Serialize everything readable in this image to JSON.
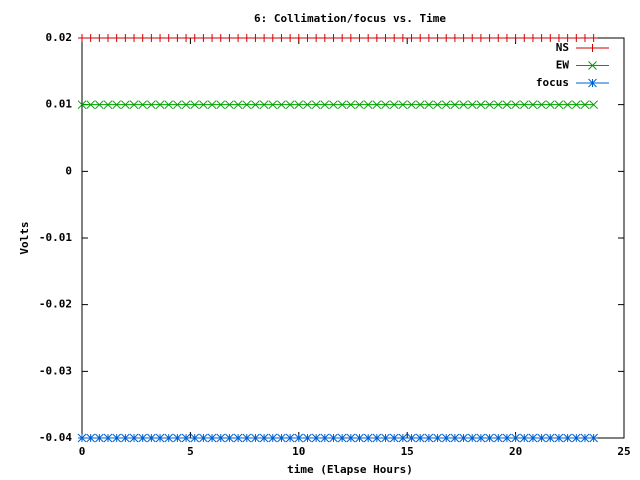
{
  "chart_data": {
    "type": "line",
    "title": "6: Collimation/focus vs. Time",
    "xlabel": "time (Elapse Hours)",
    "ylabel": "Volts",
    "x": [
      0,
      0.4,
      0.8,
      1.2,
      1.6,
      2,
      2.4,
      2.8,
      3.2,
      3.6,
      4,
      4.4,
      4.8,
      5.2,
      5.6,
      6,
      6.4,
      6.8,
      7.2,
      7.6,
      8,
      8.4,
      8.8,
      9.2,
      9.6,
      10,
      10.4,
      10.8,
      11.2,
      11.6,
      12,
      12.4,
      12.8,
      13.2,
      13.6,
      14,
      14.4,
      14.8,
      15.2,
      15.6,
      16,
      16.4,
      16.8,
      17.2,
      17.6,
      18,
      18.4,
      18.8,
      19.2,
      19.6,
      20,
      20.4,
      20.8,
      21.2,
      21.6,
      22,
      22.4,
      22.8,
      23.2,
      23.6
    ],
    "series": [
      {
        "name": "NS",
        "color": "#d00000",
        "marker": "plus",
        "values": [
          0.02,
          0.02,
          0.02,
          0.02,
          0.02,
          0.02,
          0.02,
          0.02,
          0.02,
          0.02,
          0.02,
          0.02,
          0.02,
          0.02,
          0.02,
          0.02,
          0.02,
          0.02,
          0.02,
          0.02,
          0.02,
          0.02,
          0.02,
          0.02,
          0.02,
          0.02,
          0.02,
          0.02,
          0.02,
          0.02,
          0.02,
          0.02,
          0.02,
          0.02,
          0.02,
          0.02,
          0.02,
          0.02,
          0.02,
          0.02,
          0.02,
          0.02,
          0.02,
          0.02,
          0.02,
          0.02,
          0.02,
          0.02,
          0.02,
          0.02,
          0.02,
          0.02,
          0.02,
          0.02,
          0.02,
          0.02,
          0.02,
          0.02,
          0.02,
          0.02
        ]
      },
      {
        "name": "EW",
        "color": "#00a000",
        "marker": "cross",
        "values": [
          0.01,
          0.01,
          0.01,
          0.01,
          0.01,
          0.01,
          0.01,
          0.01,
          0.01,
          0.01,
          0.01,
          0.01,
          0.01,
          0.01,
          0.01,
          0.01,
          0.01,
          0.01,
          0.01,
          0.01,
          0.01,
          0.01,
          0.01,
          0.01,
          0.01,
          0.01,
          0.01,
          0.01,
          0.01,
          0.01,
          0.01,
          0.01,
          0.01,
          0.01,
          0.01,
          0.01,
          0.01,
          0.01,
          0.01,
          0.01,
          0.01,
          0.01,
          0.01,
          0.01,
          0.01,
          0.01,
          0.01,
          0.01,
          0.01,
          0.01,
          0.01,
          0.01,
          0.01,
          0.01,
          0.01,
          0.01,
          0.01,
          0.01,
          0.01,
          0.01
        ]
      },
      {
        "name": "focus",
        "color": "#0060d0",
        "marker": "star",
        "values": [
          -0.04,
          -0.04,
          -0.04,
          -0.04,
          -0.04,
          -0.04,
          -0.04,
          -0.04,
          -0.04,
          -0.04,
          -0.04,
          -0.04,
          -0.04,
          -0.04,
          -0.04,
          -0.04,
          -0.04,
          -0.04,
          -0.04,
          -0.04,
          -0.04,
          -0.04,
          -0.04,
          -0.04,
          -0.04,
          -0.04,
          -0.04,
          -0.04,
          -0.04,
          -0.04,
          -0.04,
          -0.04,
          -0.04,
          -0.04,
          -0.04,
          -0.04,
          -0.04,
          -0.04,
          -0.04,
          -0.04,
          -0.04,
          -0.04,
          -0.04,
          -0.04,
          -0.04,
          -0.04,
          -0.04,
          -0.04,
          -0.04,
          -0.04,
          -0.04,
          -0.04,
          -0.04,
          -0.04,
          -0.04,
          -0.04,
          -0.04,
          -0.04,
          -0.04,
          -0.04
        ]
      }
    ],
    "xlim": [
      0,
      25
    ],
    "xticks": [
      0,
      5,
      10,
      15,
      20,
      25
    ],
    "ylim": [
      -0.04,
      0.02
    ],
    "yticks": [
      0.02,
      0.01,
      0,
      -0.01,
      -0.02,
      -0.03,
      -0.04
    ],
    "legend": "top-right"
  }
}
